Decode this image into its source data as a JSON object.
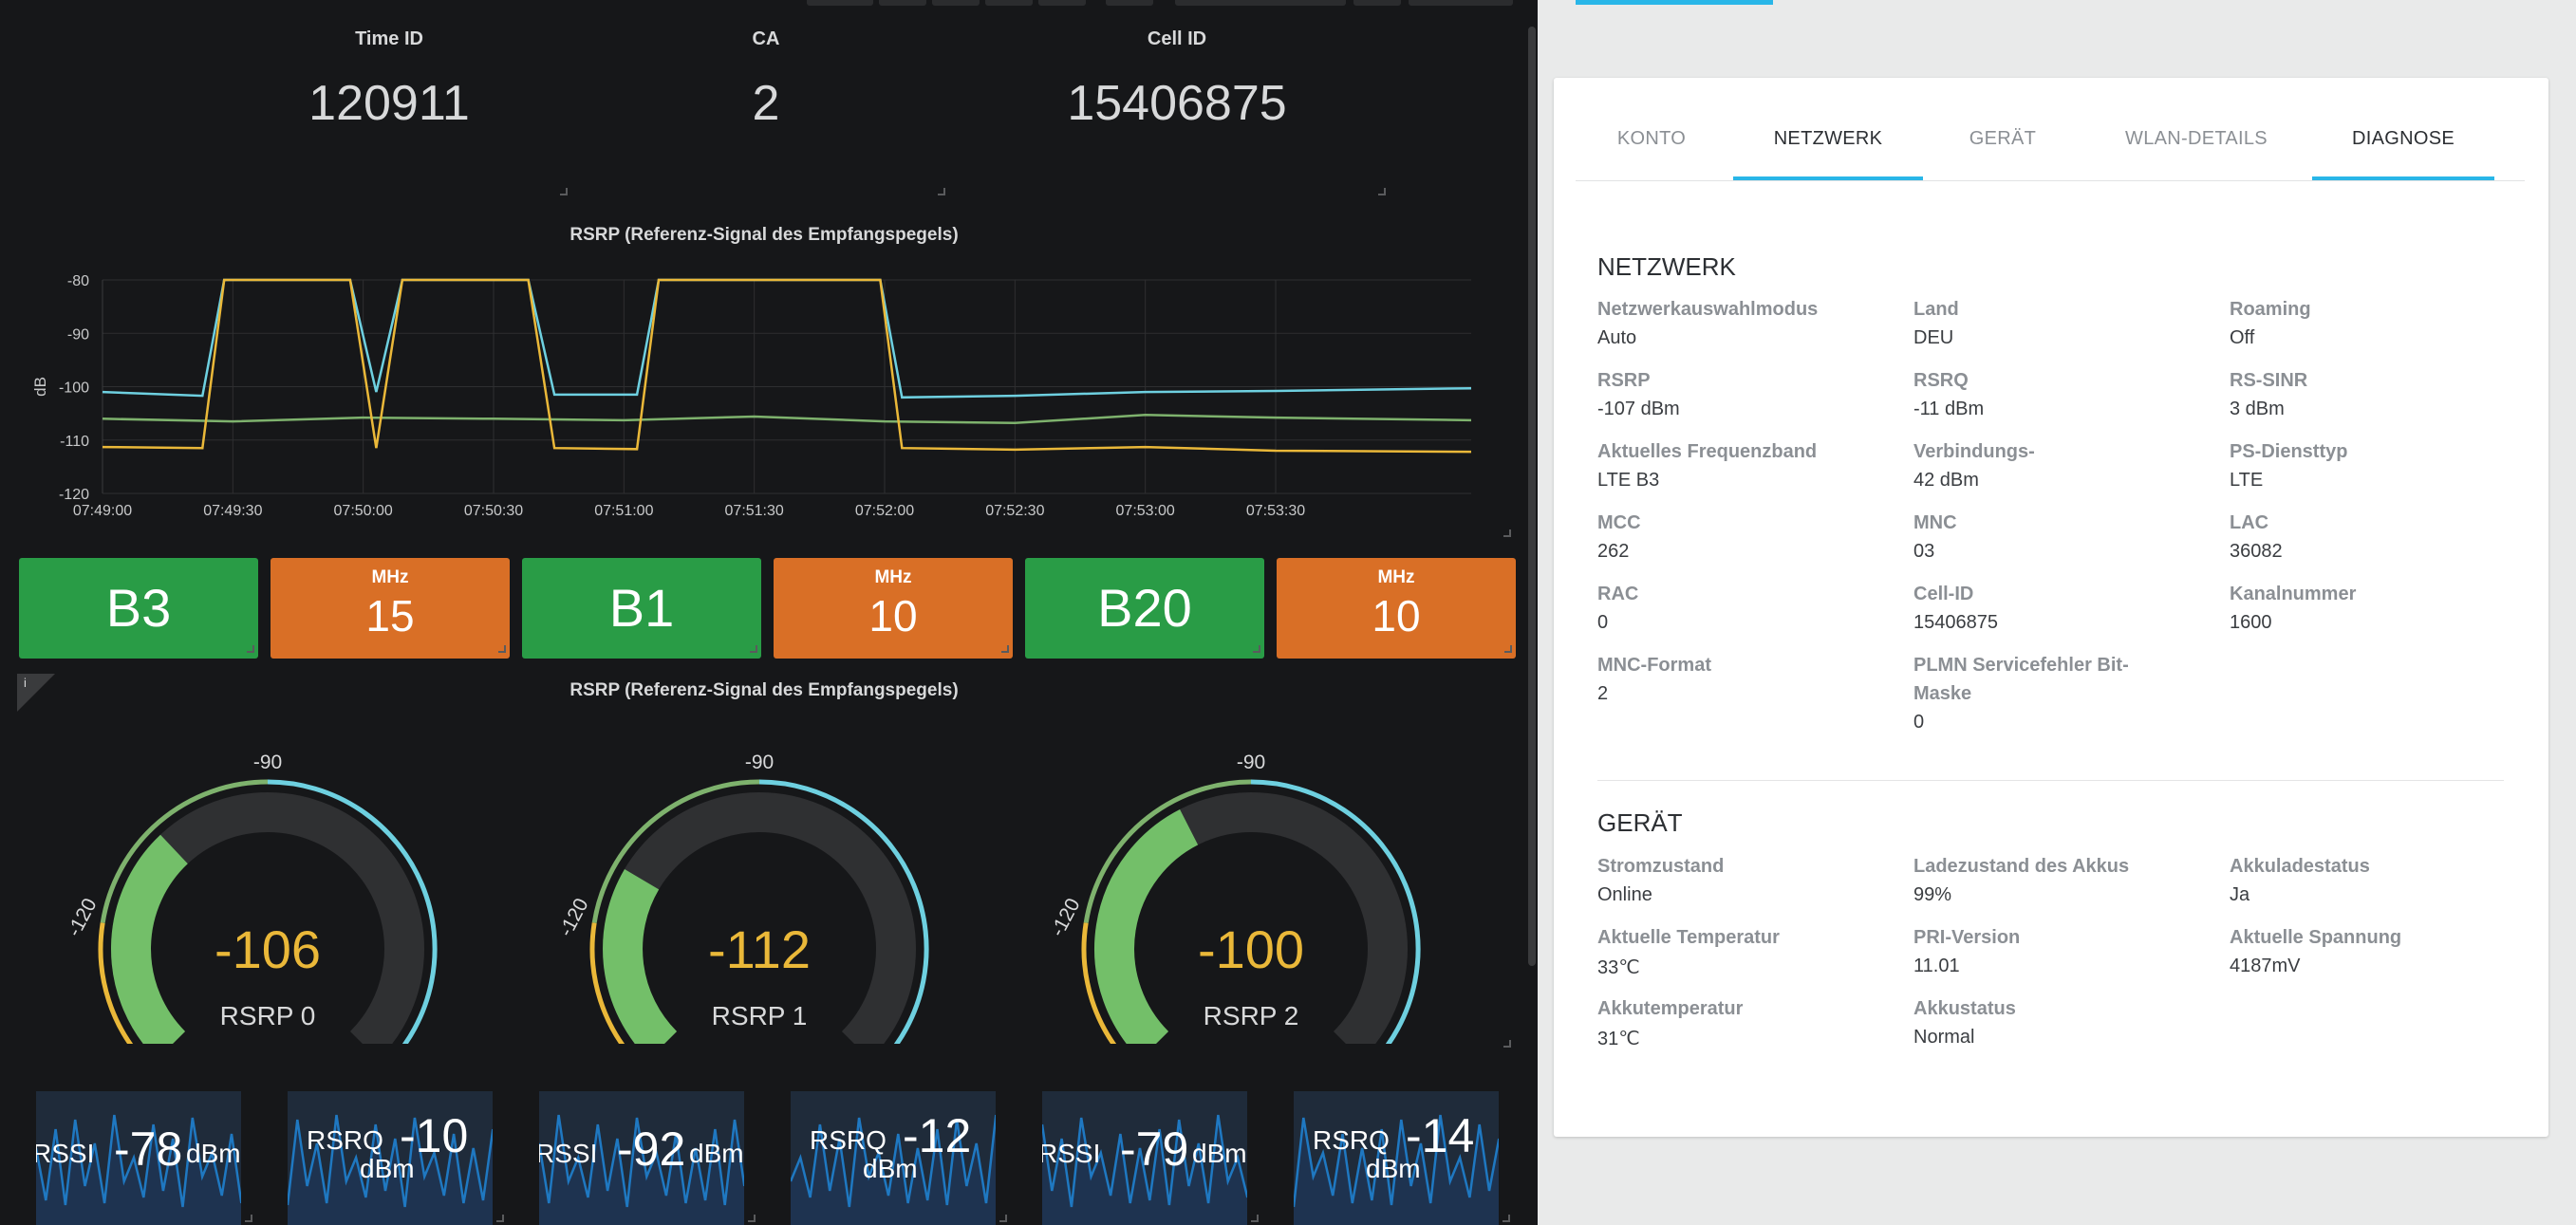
{
  "stats": [
    {
      "label": "Time ID",
      "value": "120911"
    },
    {
      "label": "CA",
      "value": "2"
    },
    {
      "label": "Cell ID",
      "value": "15406875"
    }
  ],
  "rsrp_chart_title": "RSRP (Referenz-Signal des Empfangspegels)",
  "chart_data": {
    "type": "line",
    "title": "RSRP (Referenz-Signal des Empfangspegels)",
    "ylabel": "dB",
    "xlabel": "",
    "ylim": [
      -120,
      -80
    ],
    "yticks": [
      -80,
      -90,
      -100,
      -110,
      -120
    ],
    "x_ticks": [
      "07:49:00",
      "07:49:30",
      "07:50:00",
      "07:50:30",
      "07:51:00",
      "07:51:30",
      "07:52:00",
      "07:52:30",
      "07:53:00",
      "07:53:30"
    ],
    "x_start": "07:49:00",
    "x_end": "07:54:15",
    "grid": true,
    "series": [
      {
        "color": "#6ed0e0",
        "points": [
          [
            "07:49:00",
            -101
          ],
          [
            "07:49:23",
            -101.7
          ],
          [
            "07:49:28",
            -80
          ],
          [
            "07:49:57",
            -80
          ],
          [
            "07:50:03",
            -101
          ],
          [
            "07:50:09",
            -80
          ],
          [
            "07:50:38",
            -80
          ],
          [
            "07:50:44",
            -101.5
          ],
          [
            "07:51:03",
            -101.5
          ],
          [
            "07:51:08",
            -80
          ],
          [
            "07:51:59",
            -80
          ],
          [
            "07:52:04",
            -102
          ],
          [
            "07:52:30",
            -101.7
          ],
          [
            "07:53:00",
            -101
          ],
          [
            "07:53:30",
            -100.8
          ],
          [
            "07:54:15",
            -100.3
          ]
        ]
      },
      {
        "color": "#7eb26d",
        "points": [
          [
            "07:49:00",
            -106
          ],
          [
            "07:49:30",
            -106.5
          ],
          [
            "07:50:00",
            -105.8
          ],
          [
            "07:50:30",
            -106
          ],
          [
            "07:51:00",
            -106.3
          ],
          [
            "07:51:30",
            -105.6
          ],
          [
            "07:52:00",
            -106.5
          ],
          [
            "07:52:30",
            -106.8
          ],
          [
            "07:53:00",
            -105.3
          ],
          [
            "07:53:30",
            -105.8
          ],
          [
            "07:54:15",
            -106.3
          ]
        ]
      },
      {
        "color": "#eab839",
        "points": [
          [
            "07:49:00",
            -111.3
          ],
          [
            "07:49:23",
            -111.5
          ],
          [
            "07:49:28",
            -80
          ],
          [
            "07:49:57",
            -80
          ],
          [
            "07:50:03",
            -111.5
          ],
          [
            "07:50:09",
            -80
          ],
          [
            "07:50:38",
            -80
          ],
          [
            "07:50:44",
            -111.5
          ],
          [
            "07:51:03",
            -111.7
          ],
          [
            "07:51:08",
            -80
          ],
          [
            "07:51:59",
            -80
          ],
          [
            "07:52:04",
            -111.5
          ],
          [
            "07:52:30",
            -111.8
          ],
          [
            "07:53:00",
            -111.3
          ],
          [
            "07:53:30",
            -112
          ],
          [
            "07:54:15",
            -112.2
          ]
        ]
      }
    ]
  },
  "bands": [
    {
      "kind": "band",
      "text": "B3"
    },
    {
      "kind": "bw",
      "unit": "MHz",
      "value": "15"
    },
    {
      "kind": "band",
      "text": "B1"
    },
    {
      "kind": "bw",
      "unit": "MHz",
      "value": "10"
    },
    {
      "kind": "band",
      "text": "B20"
    },
    {
      "kind": "bw",
      "unit": "MHz",
      "value": "10"
    }
  ],
  "gauge_panel_title": "RSRP (Referenz-Signal des Empfangspegels)",
  "gauge_scale": {
    "min": -140,
    "max": -40,
    "mid": -90,
    "tick_left": -120,
    "tick_labels": [
      "-140",
      "-120",
      "-90",
      "-40"
    ]
  },
  "gauges": [
    {
      "value": -106,
      "display": "-106",
      "label": "RSRP 0"
    },
    {
      "value": -112,
      "display": "-112",
      "label": "RSRP 1"
    },
    {
      "value": -100,
      "display": "-100",
      "label": "RSRP 2"
    }
  ],
  "sparks": [
    {
      "label": "RSSI",
      "value": "-78",
      "unit": "dBm"
    },
    {
      "label": "RSRQ",
      "value": "-10",
      "unit": "dBm"
    },
    {
      "label": "RSSI",
      "value": "-92",
      "unit": "dBm"
    },
    {
      "label": "RSRQ",
      "value": "-12",
      "unit": "dBm"
    },
    {
      "label": "RSSI",
      "value": "-79",
      "unit": "dBm"
    },
    {
      "label": "RSRQ",
      "value": "-14",
      "unit": "dBm"
    }
  ],
  "tabs": [
    {
      "label": "KONTO",
      "active": false
    },
    {
      "label": "NETZWERK",
      "active": true
    },
    {
      "label": "GERÄT",
      "active": false
    },
    {
      "label": "WLAN-DETAILS",
      "active": false
    },
    {
      "label": "DIAGNOSE",
      "active": true
    }
  ],
  "netzwerk": {
    "title": "NETZWERK",
    "fields": [
      {
        "label": "Netzwerkauswahlmodus",
        "value": "Auto"
      },
      {
        "label": "Land",
        "value": "DEU"
      },
      {
        "label": "Roaming",
        "value": "Off"
      },
      {
        "label": "RSRP",
        "value": "-107 dBm"
      },
      {
        "label": "RSRQ",
        "value": "-11 dBm"
      },
      {
        "label": "RS-SINR",
        "value": "3 dBm"
      },
      {
        "label": "Aktuelles Frequenzband",
        "value": "LTE B3"
      },
      {
        "label": "Verbindungs-",
        "value": "42 dBm"
      },
      {
        "label": "PS-Diensttyp",
        "value": "LTE"
      },
      {
        "label": "MCC",
        "value": "262"
      },
      {
        "label": "MNC",
        "value": "03"
      },
      {
        "label": "LAC",
        "value": "36082"
      },
      {
        "label": "RAC",
        "value": "0"
      },
      {
        "label": "Cell-ID",
        "value": "15406875"
      },
      {
        "label": "Kanalnummer",
        "value": "1600"
      },
      {
        "label": "MNC-Format",
        "value": "2"
      },
      {
        "label": "PLMN Servicefehler Bit-",
        "label2": "Maske",
        "value": "0"
      }
    ]
  },
  "geraet": {
    "title": "GERÄT",
    "fields": [
      {
        "label": "Stromzustand",
        "value": "Online"
      },
      {
        "label": "Ladezustand des Akkus",
        "value": "99%"
      },
      {
        "label": "Akkuladestatus",
        "value": "Ja"
      },
      {
        "label": "Aktuelle Temperatur",
        "value": "33℃"
      },
      {
        "label": "PRI-Version",
        "value": "11.01"
      },
      {
        "label": "Aktuelle Spannung",
        "value": "4187mV"
      },
      {
        "label": "Akkutemperatur",
        "value": "31℃"
      },
      {
        "label": "Akkustatus",
        "value": "Normal"
      }
    ]
  }
}
